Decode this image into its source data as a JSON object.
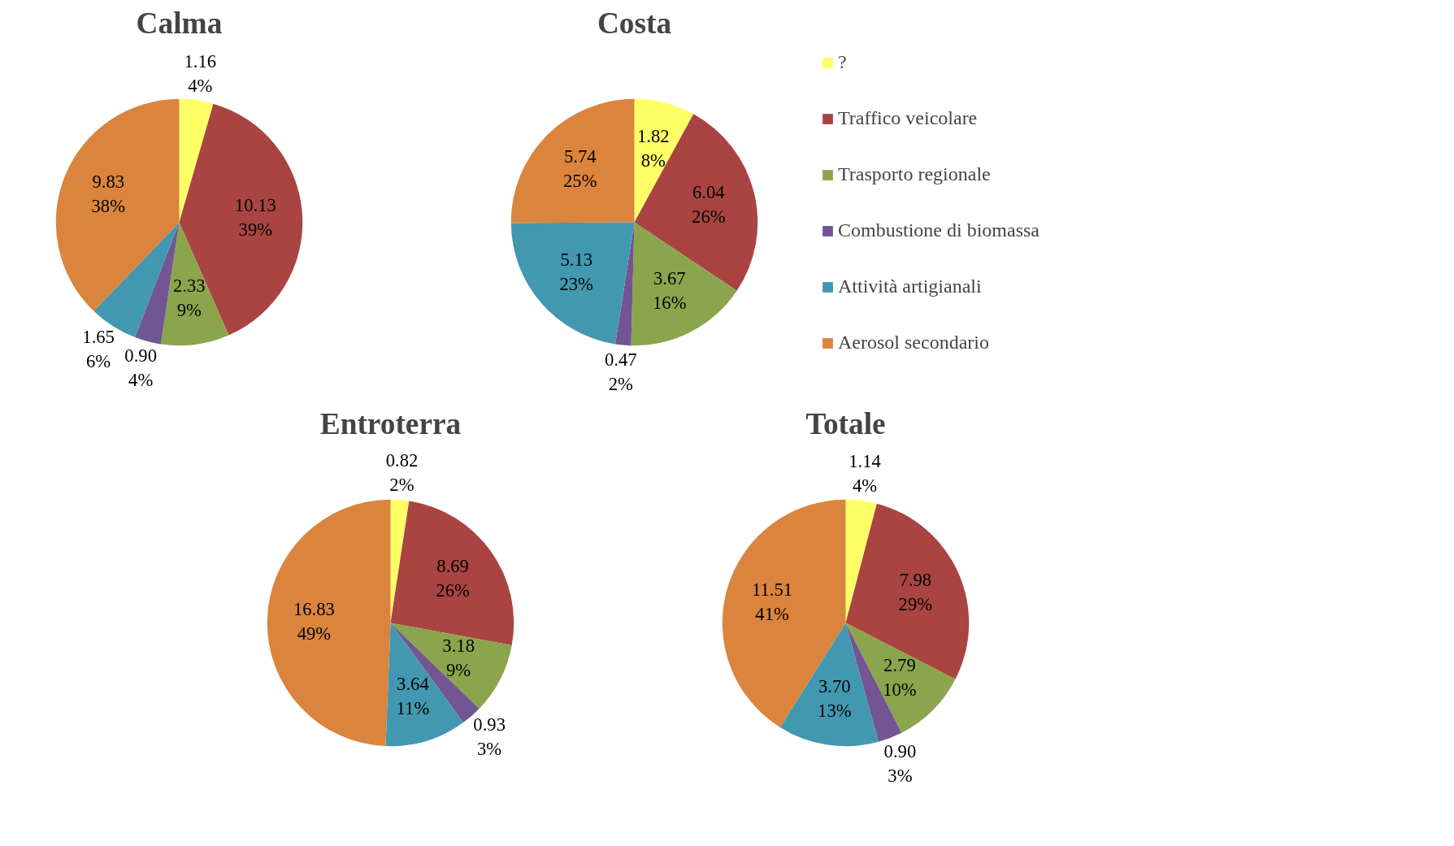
{
  "chart_data": [
    {
      "type": "pie",
      "title": "Calma",
      "categories": [
        null,
        null,
        null,
        null,
        null,
        null
      ],
      "values": [
        1.16,
        10.13,
        2.33,
        0.9,
        1.65,
        9.83
      ],
      "value_labels": [
        "1.16\n4%",
        "10.13\n39%",
        "2.33\n9%",
        "0.90\n4%",
        "1.65\n6%",
        "9.83\n38%"
      ],
      "colors": [
        "#ffff66",
        "#a94442",
        "#8aa54b",
        "#725592",
        "#4298b0",
        "#db843d"
      ]
    },
    {
      "type": "pie",
      "title": "Costa",
      "categories": [
        "?",
        "Traffico veicolare",
        "Trasporto regionale",
        "Combustione di biomassa",
        "Attività artigianali",
        "Aerosol secondario"
      ],
      "values": [
        1.82,
        6.04,
        3.67,
        0.47,
        5.13,
        5.74
      ],
      "value_labels": [
        "1.82\n8%",
        "6.04\n26%",
        "3.67\n16%",
        "0.47\n2%",
        "5.13\n23%",
        "5.74\n25%"
      ],
      "colors": [
        "#ffff66",
        "#a94442",
        "#8aa54b",
        "#725592",
        "#4298b0",
        "#db843d"
      ],
      "legend": "right"
    },
    {
      "type": "pie",
      "title": "Entroterra",
      "categories": [
        null,
        null,
        null,
        null,
        null,
        null
      ],
      "values": [
        0.82,
        8.69,
        3.18,
        0.93,
        3.64,
        16.83
      ],
      "value_labels": [
        "0.82\n2%",
        "8.69\n26%",
        "3.18\n9%",
        "0.93\n3%",
        "3.64\n11%",
        "16.83\n49%"
      ],
      "colors": [
        "#ffff66",
        "#a94442",
        "#8aa54b",
        "#725592",
        "#4298b0",
        "#db843d"
      ]
    },
    {
      "type": "pie",
      "title": "Totale",
      "categories": [
        null,
        null,
        null,
        null,
        null,
        null
      ],
      "values": [
        1.14,
        7.98,
        2.79,
        0.9,
        3.7,
        11.51
      ],
      "value_labels": [
        "1.14\n4%",
        "7.98\n29%",
        "2.79\n10%",
        "0.90\n3%",
        "3.70\n13%",
        "11.51\n41%"
      ],
      "colors": [
        "#ffff66",
        "#a94442",
        "#8aa54b",
        "#725592",
        "#4298b0",
        "#db843d"
      ]
    }
  ]
}
